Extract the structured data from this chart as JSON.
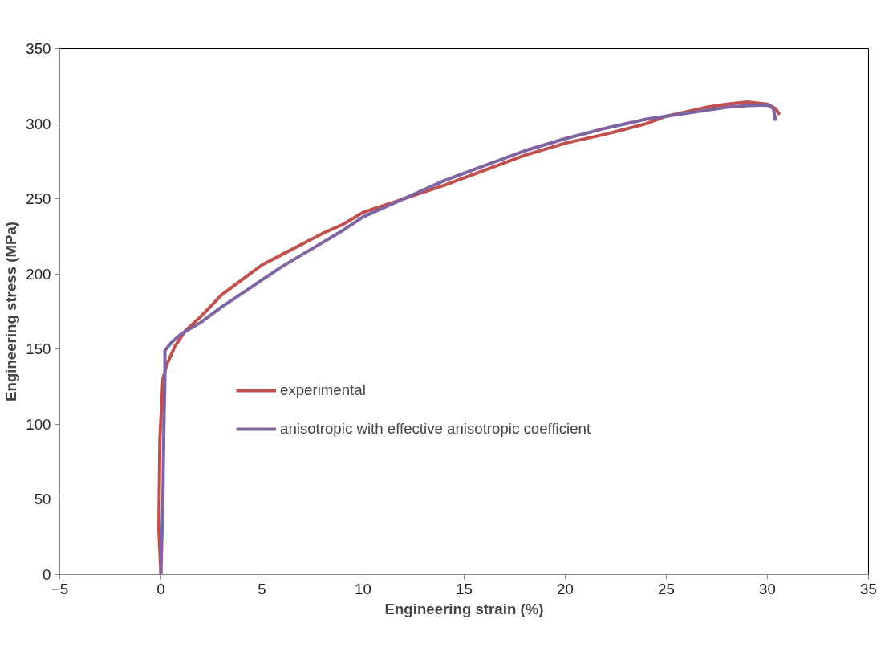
{
  "chart_data": {
    "type": "line",
    "xlabel": "Engineering strain (%)",
    "ylabel": "Engineering stress (MPa)",
    "xlim": [
      -5,
      35
    ],
    "xticks": [
      -5,
      0,
      5,
      10,
      15,
      20,
      25,
      30,
      35
    ],
    "ylim": [
      0,
      350
    ],
    "yticks": [
      0,
      50,
      100,
      150,
      200,
      250,
      300,
      350
    ],
    "grid": false,
    "legend": "center",
    "marker": "none",
    "line_style": "solid",
    "series": [
      {
        "name": "experimental",
        "color": "#c0504d",
        "x": [
          0,
          -0.1,
          -0.05,
          0.1,
          0.3,
          0.7,
          1.2,
          2,
          3,
          4,
          5,
          6,
          7,
          8,
          9,
          10,
          12,
          14,
          16,
          18,
          20,
          22,
          24,
          25,
          26,
          27,
          28,
          29,
          30,
          30.4,
          30.6
        ],
        "values": [
          0,
          30,
          90,
          130,
          140,
          152,
          162,
          172,
          186,
          196,
          206,
          213,
          220,
          227,
          233,
          241,
          250,
          259,
          269,
          279,
          287,
          293,
          300,
          305,
          308,
          311,
          313,
          314.5,
          313,
          310,
          306
        ]
      },
      {
        "name": "anisotropic with effective anisotropic coefficient",
        "color": "#8064a2",
        "x": [
          0,
          0.1,
          0.15,
          0.2,
          0.2,
          0.5,
          1,
          2,
          3,
          4,
          5,
          6,
          7,
          8,
          9,
          10,
          12,
          14,
          16,
          18,
          20,
          22,
          24,
          26,
          27,
          28,
          29,
          30,
          30.3,
          30.4
        ],
        "values": [
          0,
          50,
          100,
          130,
          149,
          154,
          160,
          168,
          178,
          187,
          196,
          205,
          213,
          221,
          229,
          238,
          250,
          262,
          272,
          282,
          290,
          297,
          303,
          307,
          309,
          311,
          312,
          312.5,
          310,
          302
        ]
      }
    ]
  }
}
